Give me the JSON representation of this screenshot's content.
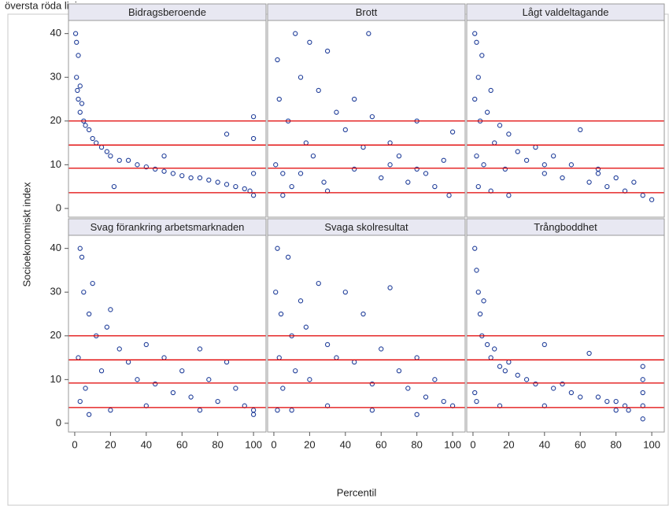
{
  "chart_data": {
    "type": "scatter",
    "caption": "översta röda linjen.",
    "xlabel": "Percentil",
    "ylabel": "Socioekonomiskt index",
    "xlim": [
      -3.5,
      107
    ],
    "ylim": [
      -2,
      43
    ],
    "xticks": [
      0,
      20,
      40,
      60,
      80,
      100
    ],
    "yticks": [
      0,
      10,
      20,
      30,
      40
    ],
    "color": "#1f3d99",
    "reference_color": "#e00000",
    "reference_lines": [
      20,
      14.5,
      9.2,
      3.6
    ],
    "panels": [
      {
        "title": "Bidragsberoende",
        "x": [
          0.5,
          1,
          1,
          1.5,
          2,
          2,
          3,
          3,
          4,
          5,
          6,
          8,
          10,
          12,
          15,
          18,
          20,
          25,
          30,
          35,
          40,
          45,
          50,
          55,
          60,
          65,
          70,
          75,
          80,
          85,
          90,
          95,
          98,
          100,
          100,
          100,
          100,
          22,
          50,
          85
        ],
        "y": [
          40,
          38,
          30,
          27,
          35,
          25,
          28,
          22,
          24,
          20,
          19,
          18,
          16,
          15,
          14,
          13,
          12,
          11,
          11,
          10,
          9.5,
          9,
          8.5,
          8,
          7.5,
          7,
          7,
          6.5,
          6,
          5.5,
          5,
          4.5,
          4,
          21,
          16,
          8,
          3,
          5,
          12,
          17
        ]
      },
      {
        "title": "Brott",
        "x": [
          1,
          2,
          3,
          5,
          8,
          10,
          12,
          15,
          18,
          20,
          22,
          25,
          28,
          30,
          35,
          40,
          45,
          50,
          53,
          55,
          60,
          65,
          70,
          75,
          80,
          85,
          90,
          95,
          98,
          100,
          5,
          15,
          30,
          45,
          65,
          80
        ],
        "y": [
          10,
          34,
          25,
          8,
          20,
          5,
          40,
          30,
          15,
          38,
          12,
          27,
          6,
          36,
          22,
          18,
          9,
          14,
          40,
          21,
          7,
          10,
          12,
          6,
          20,
          8,
          5,
          11,
          3,
          17.5,
          3,
          8,
          4,
          25,
          15,
          9
        ]
      },
      {
        "title": "Lågt valdeltagande",
        "x": [
          1,
          1,
          2,
          2,
          3,
          4,
          5,
          6,
          8,
          10,
          12,
          15,
          18,
          20,
          25,
          30,
          35,
          40,
          45,
          50,
          55,
          60,
          65,
          70,
          75,
          80,
          85,
          90,
          95,
          100,
          3,
          10,
          20,
          40,
          70
        ],
        "y": [
          40,
          25,
          38,
          12,
          30,
          20,
          35,
          10,
          22,
          27,
          15,
          19,
          9,
          17,
          13,
          11,
          14,
          8,
          12,
          7,
          10,
          18,
          6,
          9,
          5,
          7,
          4,
          6,
          3,
          2,
          5,
          4,
          3,
          10,
          8
        ]
      },
      {
        "title": "Svag förankring arbetsmarknaden",
        "x": [
          2,
          3,
          4,
          5,
          6,
          8,
          10,
          12,
          15,
          18,
          20,
          25,
          30,
          35,
          40,
          45,
          50,
          55,
          60,
          65,
          70,
          75,
          80,
          85,
          90,
          95,
          100,
          3,
          8,
          20,
          40,
          70,
          100
        ],
        "y": [
          15,
          40,
          38,
          30,
          8,
          25,
          32,
          20,
          12,
          22,
          26,
          17,
          14,
          10,
          18,
          9,
          15,
          7,
          12,
          6,
          17,
          10,
          5,
          14,
          8,
          4,
          3,
          5,
          2,
          3,
          4,
          3,
          2
        ]
      },
      {
        "title": "Svaga skolresultat",
        "x": [
          1,
          2,
          3,
          4,
          5,
          8,
          10,
          12,
          15,
          18,
          20,
          25,
          30,
          35,
          40,
          45,
          50,
          55,
          60,
          65,
          70,
          75,
          80,
          85,
          90,
          95,
          100,
          2,
          10,
          30,
          55,
          80
        ],
        "y": [
          30,
          40,
          15,
          25,
          8,
          38,
          20,
          12,
          28,
          22,
          10,
          32,
          18,
          15,
          30,
          14,
          25,
          9,
          17,
          31,
          12,
          8,
          15,
          6,
          10,
          5,
          4,
          3,
          3,
          4,
          3,
          2
        ]
      },
      {
        "title": "Trångboddhet",
        "x": [
          1,
          1,
          2,
          3,
          4,
          5,
          6,
          8,
          10,
          12,
          15,
          18,
          20,
          25,
          30,
          35,
          40,
          45,
          50,
          55,
          60,
          65,
          70,
          75,
          80,
          85,
          87,
          95,
          95,
          95,
          95,
          95,
          2,
          15,
          40,
          80
        ],
        "y": [
          40,
          7,
          35,
          30,
          25,
          20,
          28,
          18,
          15,
          17,
          13,
          12,
          14,
          11,
          10,
          9,
          18,
          8,
          9,
          7,
          6,
          16,
          6,
          5,
          5,
          4,
          3,
          13,
          10,
          7,
          4,
          1,
          5,
          4,
          4,
          3
        ]
      }
    ]
  }
}
